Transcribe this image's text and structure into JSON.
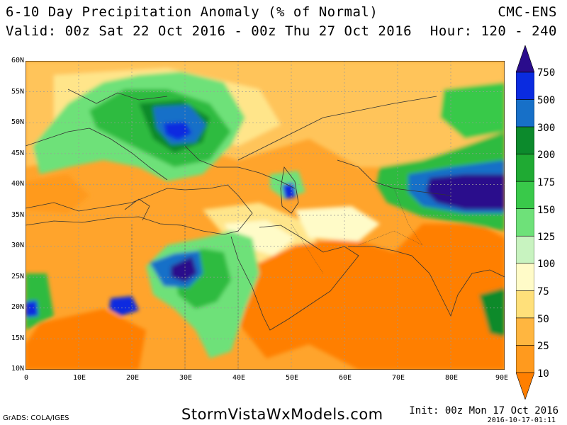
{
  "header": {
    "title": "6-10 Day Precipitation Anomaly (% of Normal)",
    "valid": "Valid: 00z Sat 22 Oct 2016 - 00z Thu 27 Oct 2016",
    "model": "CMC-ENS",
    "hours": "Hour: 120 - 240"
  },
  "axes": {
    "lat_labels": [
      "60N",
      "55N",
      "50N",
      "45N",
      "40N",
      "35N",
      "30N",
      "25N",
      "20N",
      "15N",
      "10N"
    ],
    "lon_labels": [
      "0",
      "10E",
      "20E",
      "30E",
      "40E",
      "50E",
      "60E",
      "70E",
      "80E",
      "90E"
    ]
  },
  "colorbar": {
    "labels": [
      "750",
      "500",
      "300",
      "200",
      "175",
      "150",
      "125",
      "100",
      "75",
      "50",
      "25",
      "10"
    ],
    "colors": [
      "#2a0c8c",
      "#0a2be0",
      "#1770c8",
      "#0c8a2c",
      "#1faa33",
      "#39c94a",
      "#6ee179",
      "#c8f3c0",
      "#fffbc8",
      "#ffe07a",
      "#ffb640",
      "#ff9a1e",
      "#ff7f00"
    ]
  },
  "palette": {
    "orange_deep": "#ff7f00",
    "orange": "#ffa42c",
    "orange_light": "#ffc45a",
    "yellow": "#ffe58a",
    "cream": "#fffbc8",
    "green_pale": "#c8f3c0",
    "green_light": "#6ee179",
    "green": "#2dbb3f",
    "green_dark": "#0c8a2c",
    "blue": "#1770c8",
    "blue_bright": "#0a2be0",
    "indigo": "#2a0c8c"
  },
  "footer": {
    "grads": "GrADS: COLA/IGES",
    "site": "StormVistaWxModels.com",
    "init": "Init: 00z Mon 17 Oct 2016",
    "stamp": "2016-10-17-01:11"
  }
}
